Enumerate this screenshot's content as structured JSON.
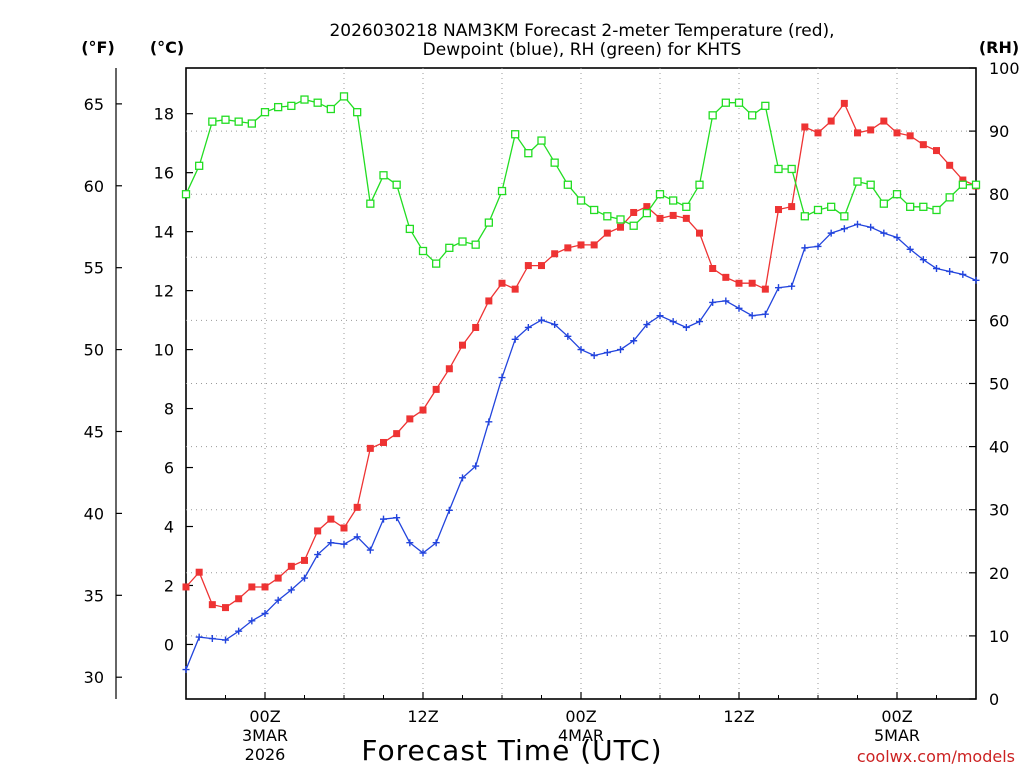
{
  "chart_data": {
    "type": "line",
    "title_line1": "2026030218 NAM3KM Forecast 2-meter Temperature (red),",
    "title_line2": "Dewpoint (blue), RH (green) for KHTS",
    "xlabel": "Forecast Time (UTC)",
    "watermark": "coolwx.com/models",
    "unit_labels": {
      "fahrenheit": "(°F)",
      "celsius": "(°C)",
      "rh": "(RH)"
    },
    "x_range_hours": [
      -6,
      54
    ],
    "celsius_range": [
      -1.85,
      19.55
    ],
    "celsius_ticks": [
      0,
      2,
      4,
      6,
      8,
      10,
      12,
      14,
      16,
      18
    ],
    "fahrenheit_ticks": [
      30,
      35,
      40,
      45,
      50,
      55,
      60,
      65
    ],
    "rh_range": [
      0,
      100
    ],
    "rh_ticks": [
      0,
      10,
      20,
      30,
      40,
      50,
      60,
      70,
      80,
      90,
      100
    ],
    "x_ticks": [
      {
        "hour": 0,
        "label": "00Z",
        "sub1": "3MAR",
        "sub2": "2026"
      },
      {
        "hour": 12,
        "label": "12Z",
        "sub1": "",
        "sub2": ""
      },
      {
        "hour": 24,
        "label": "00Z",
        "sub1": "4MAR",
        "sub2": ""
      },
      {
        "hour": 36,
        "label": "12Z",
        "sub1": "",
        "sub2": ""
      },
      {
        "hour": 48,
        "label": "00Z",
        "sub1": "5MAR",
        "sub2": ""
      }
    ],
    "series": [
      {
        "name": "Temperature (°C)",
        "color": "#ee3333",
        "marker": "filled-square",
        "axis": "celsius",
        "values": [
          1.95,
          2.45,
          1.35,
          1.25,
          1.55,
          1.95,
          1.95,
          2.25,
          2.65,
          2.85,
          3.85,
          4.25,
          3.95,
          4.65,
          6.65,
          6.85,
          7.15,
          7.65,
          7.95,
          8.65,
          9.35,
          10.15,
          10.75,
          11.65,
          12.25,
          12.05,
          12.85,
          12.85,
          13.25,
          13.45,
          13.55,
          13.55,
          13.95,
          14.15,
          14.65,
          14.85,
          14.45,
          14.55,
          14.45,
          13.95,
          12.75,
          12.45,
          12.25,
          12.25,
          12.05,
          14.75,
          14.85,
          17.55,
          17.35,
          17.75,
          18.35,
          17.35,
          17.45,
          17.75,
          17.35,
          17.25,
          16.95,
          16.75,
          16.25,
          15.75,
          15.55
        ]
      },
      {
        "name": "Dewpoint (°C)",
        "color": "#2244dd",
        "marker": "plus",
        "axis": "celsius",
        "values": [
          -0.85,
          0.25,
          0.2,
          0.15,
          0.45,
          0.8,
          1.05,
          1.5,
          1.85,
          2.25,
          3.05,
          3.45,
          3.4,
          3.65,
          3.2,
          4.25,
          4.3,
          3.45,
          3.1,
          3.45,
          4.55,
          5.65,
          6.05,
          7.55,
          9.05,
          10.35,
          10.75,
          11.0,
          10.85,
          10.45,
          10.0,
          9.8,
          9.9,
          10.0,
          10.3,
          10.85,
          11.15,
          10.95,
          10.75,
          10.95,
          11.6,
          11.65,
          11.4,
          11.15,
          11.2,
          12.1,
          12.15,
          13.45,
          13.5,
          13.95,
          14.1,
          14.25,
          14.15,
          13.95,
          13.8,
          13.4,
          13.05,
          12.75,
          12.65,
          12.55,
          12.35
        ]
      },
      {
        "name": "RH (%)",
        "color": "#22dd22",
        "marker": "open-square",
        "axis": "rh",
        "values": [
          80.0,
          84.5,
          91.5,
          91.8,
          91.5,
          91.2,
          93.0,
          93.8,
          94.0,
          95.0,
          94.5,
          93.5,
          95.5,
          93.0,
          78.5,
          83.0,
          81.5,
          74.5,
          71.0,
          69.0,
          71.5,
          72.5,
          72.0,
          75.5,
          80.5,
          89.5,
          86.5,
          88.5,
          85.0,
          81.5,
          79.0,
          77.5,
          76.5,
          76.0,
          75.0,
          77.0,
          80.0,
          79.0,
          78.0,
          81.5,
          92.5,
          94.5,
          94.5,
          92.5,
          94.0,
          84.0,
          84.0,
          76.5,
          77.5,
          78.0,
          76.5,
          82.0,
          81.5,
          78.5,
          80.0,
          78.0,
          78.0,
          77.5,
          79.5,
          81.5,
          81.5
        ]
      }
    ]
  }
}
